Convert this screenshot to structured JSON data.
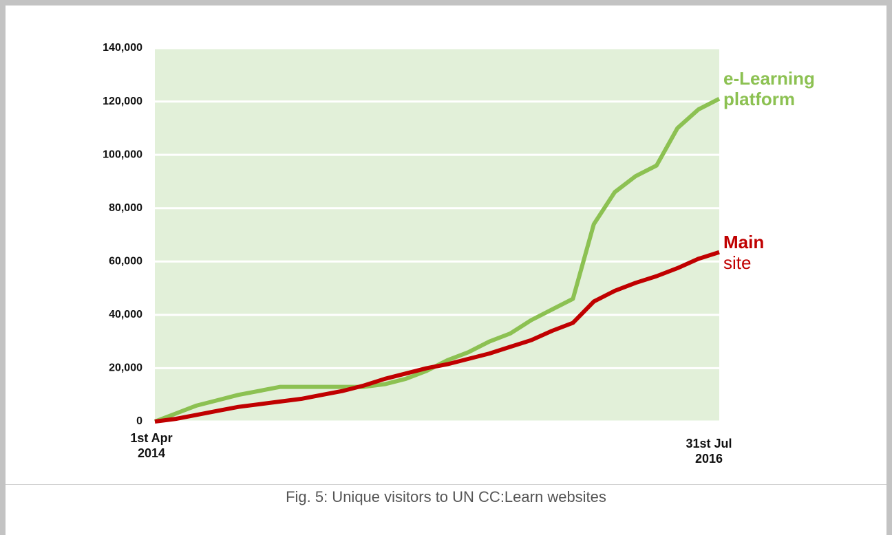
{
  "chart_data": {
    "type": "line",
    "caption": "Fig. 5: Unique visitors to UN CC:Learn websites",
    "categories": [
      "1st Apr 2014",
      null,
      null,
      null,
      null,
      null,
      null,
      null,
      null,
      null,
      null,
      null,
      null,
      null,
      null,
      null,
      null,
      null,
      null,
      null,
      null,
      null,
      null,
      null,
      null,
      null,
      null,
      "31st Jul 2016"
    ],
    "series": [
      {
        "name": "e-Learning platform",
        "color": "#8cc152",
        "values": [
          0,
          3000,
          6000,
          8000,
          10000,
          11500,
          13000,
          13000,
          13000,
          13000,
          13000,
          14000,
          16000,
          19000,
          23000,
          26000,
          30000,
          33000,
          38000,
          42000,
          46000,
          74000,
          86000,
          92000,
          96000,
          110000,
          117000,
          121000
        ]
      },
      {
        "name": "Main site",
        "color": "#c00000",
        "values": [
          0,
          1000,
          2500,
          4000,
          5500,
          6500,
          7500,
          8500,
          10000,
          11500,
          13500,
          16000,
          18000,
          20000,
          21500,
          23500,
          25500,
          28000,
          30500,
          34000,
          37000,
          45000,
          49000,
          52000,
          54500,
          57500,
          61000,
          63500
        ]
      }
    ],
    "ylim": [
      0,
      140000
    ],
    "yticks": [
      0,
      {
        "value": 20000,
        "label": "20,000"
      },
      {
        "value": 40000,
        "label": "40,000"
      },
      {
        "value": 60000,
        "label": "60,000"
      },
      {
        "value": 80000,
        "label": "80,000"
      },
      {
        "value": 100000,
        "label": "100,000"
      },
      {
        "value": 120000,
        "label": "120,000"
      },
      {
        "value": 140000,
        "label": "140,000"
      }
    ],
    "grid": true,
    "plot_background": "#e2f0d9"
  }
}
